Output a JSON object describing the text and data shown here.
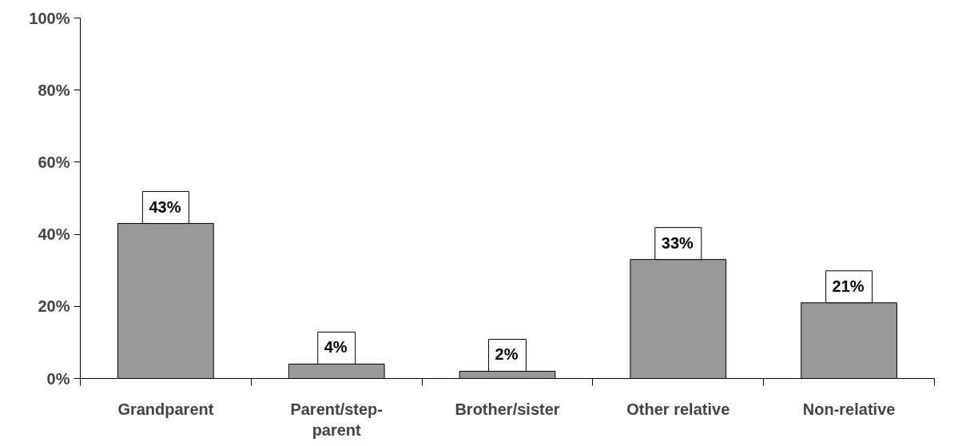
{
  "chart_data": {
    "type": "bar",
    "categories": [
      "Grandparent",
      "Parent/step-parent",
      "Brother/sister",
      "Other relative",
      "Non-relative"
    ],
    "values": [
      43,
      4,
      2,
      33,
      21
    ],
    "color": "#999999",
    "value_labels": [
      "43%",
      "4%",
      "2%",
      "33%",
      "21%"
    ],
    "ylim": [
      0,
      100
    ],
    "yticks": [
      {
        "value": 0,
        "label": "0%"
      },
      {
        "value": 20,
        "label": "20%"
      },
      {
        "value": 40,
        "label": "40%"
      },
      {
        "value": 60,
        "label": "60%"
      },
      {
        "value": 80,
        "label": "80%"
      },
      {
        "value": 100,
        "label": "100%"
      }
    ],
    "grid": false
  }
}
